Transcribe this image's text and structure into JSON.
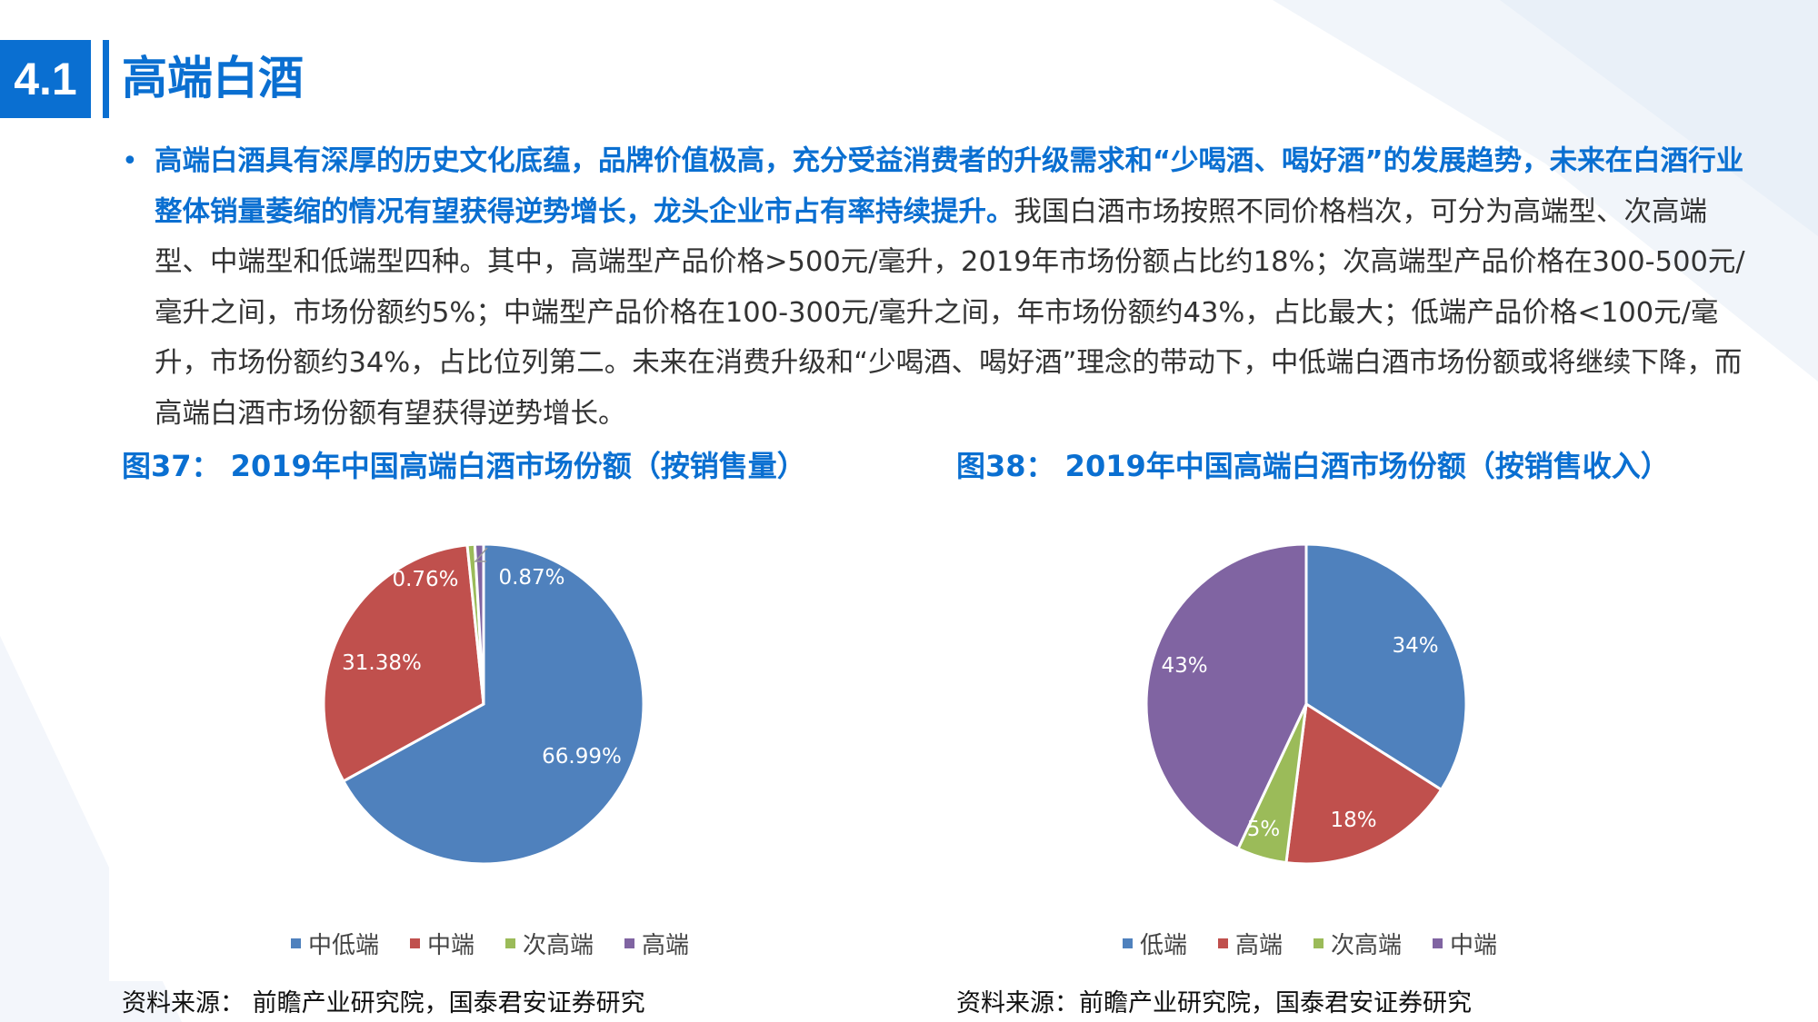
{
  "header": {
    "number": "4.1",
    "title": "高端白酒"
  },
  "body": {
    "bullet": "•",
    "highlight": "高端白酒具有深厚的历史文化底蕴，品牌价值极高，充分受益消费者的升级需求和“少喝酒、喝好酒”的发展趋势，未来在白酒行业整体销量萎缩的情况有望获得逆势增长，龙头企业市占有率持续提升。",
    "text": "我国白酒市场按照不同价格档次，可分为高端型、次高端型、中端型和低端型四种。其中，高端型产品价格>500元/毫升，2019年市场份额占比约18%；次高端型产品价格在300-500元/毫升之间，市场份额约5%；中端型产品价格在100-300元/毫升之间，年市场份额约43%，占比最大；低端产品价格<100元/毫升，市场份额约34%，占比位列第二。未来在消费升级和“少喝酒、喝好酒”理念的带动下，中低端白酒市场份额或将继续下降，而高端白酒市场份额有望获得逆势增长。"
  },
  "fig37": {
    "title": "图37： 2019年中国高端白酒市场份额（按销售量）",
    "source": "资料来源： 前瞻产业研究院，国泰君安证券研究"
  },
  "fig38": {
    "title": "图38： 2019年中国高端白酒市场份额（按销售收入）",
    "source": "资料来源：前瞻产业研究院，国泰君安证券研究"
  },
  "chart_data": [
    {
      "type": "pie",
      "title": "",
      "labels": [
        "中低端",
        "中端",
        "次高端",
        "高端"
      ],
      "values": [
        66.99,
        31.38,
        0.76,
        0.87
      ],
      "value_labels": [
        "66.99%",
        "31.38%",
        "0.76%",
        "0.87%"
      ],
      "colors": [
        "#4f81bd",
        "#c0504d",
        "#9bbb59",
        "#8064a2"
      ],
      "legend": "bottom"
    },
    {
      "type": "pie",
      "title": "",
      "labels": [
        "低端",
        "高端",
        "次高端",
        "中端"
      ],
      "values": [
        34,
        18,
        5,
        43
      ],
      "value_labels": [
        "34%",
        "18%",
        "5%",
        "43%"
      ],
      "colors": [
        "#4f81bd",
        "#c0504d",
        "#9bbb59",
        "#8064a2"
      ],
      "legend": "bottom"
    }
  ]
}
